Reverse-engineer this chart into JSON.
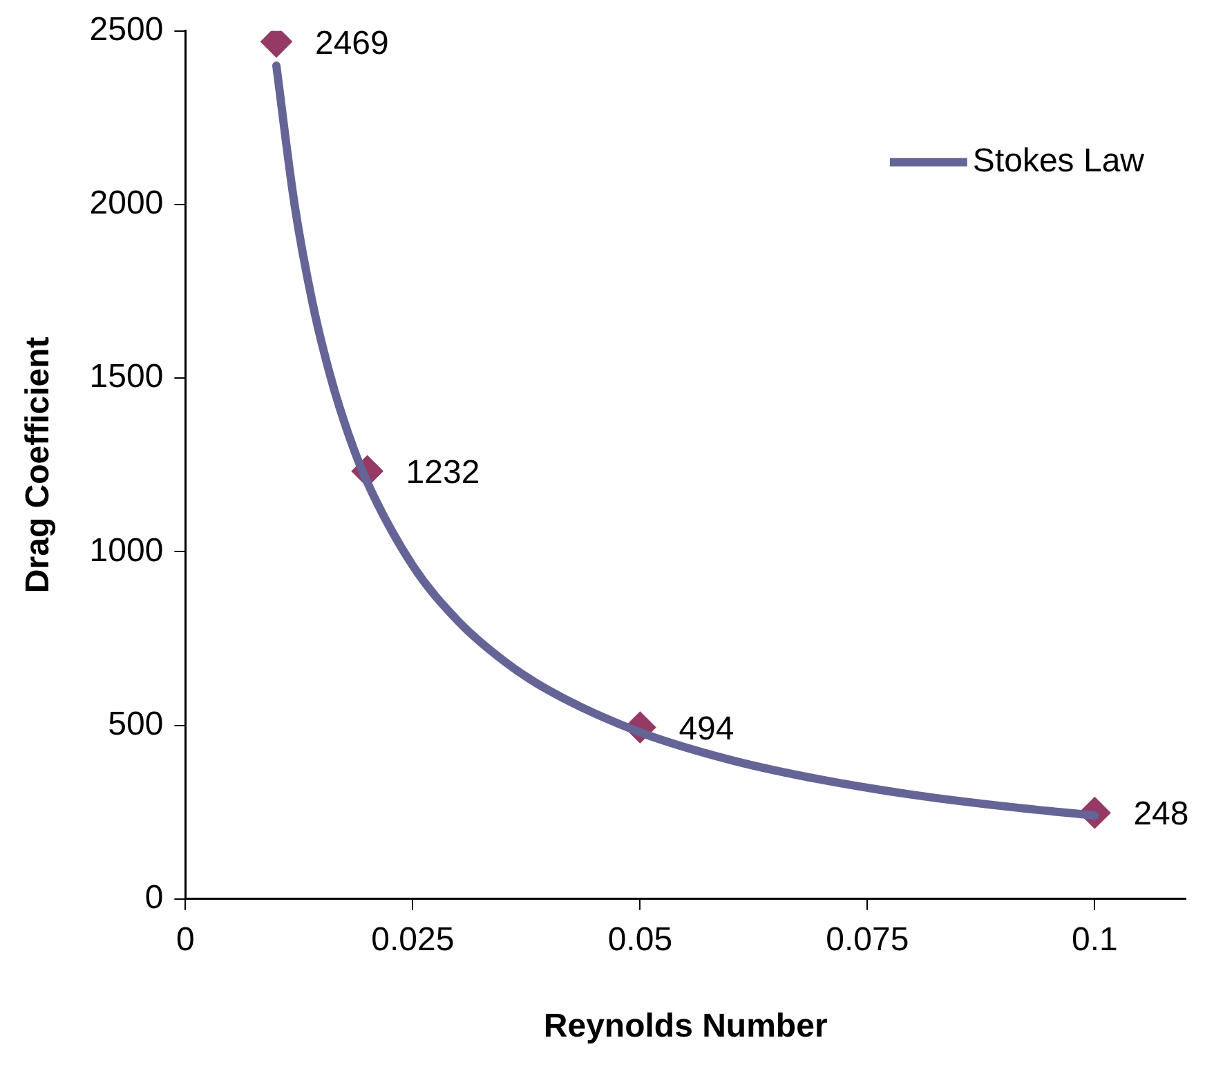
{
  "chart_data": {
    "type": "line",
    "xlabel": "Reynolds Number",
    "ylabel": "Drag Coefficient",
    "xlim": [
      0,
      0.11
    ],
    "xticks": [
      0,
      0.025,
      0.05,
      0.075,
      0.1
    ],
    "ylim": [
      0,
      2500
    ],
    "yticks": [
      0,
      500,
      1000,
      1500,
      2000,
      2500
    ],
    "grid": false,
    "legend": "top right",
    "series": [
      {
        "name": "Stokes Law",
        "type": "line",
        "color": "#646496",
        "marker": "none",
        "x": [
          0.01,
          0.012,
          0.014,
          0.016,
          0.018,
          0.02,
          0.025,
          0.03,
          0.035,
          0.04,
          0.05,
          0.06,
          0.07,
          0.08,
          0.09,
          0.1
        ],
        "values": [
          2400,
          2000,
          1714,
          1500,
          1333,
          1200,
          960,
          800,
          686,
          600,
          480,
          400,
          343,
          300,
          267,
          240
        ]
      },
      {
        "type": "scatter",
        "color": "#953a64",
        "marker": "diamond",
        "x": [
          0.01,
          0.02,
          0.05,
          0.1
        ],
        "values": [
          2469,
          1232,
          494,
          248
        ],
        "value_labels": [
          "2469",
          "1232",
          "494",
          "248"
        ]
      }
    ]
  }
}
